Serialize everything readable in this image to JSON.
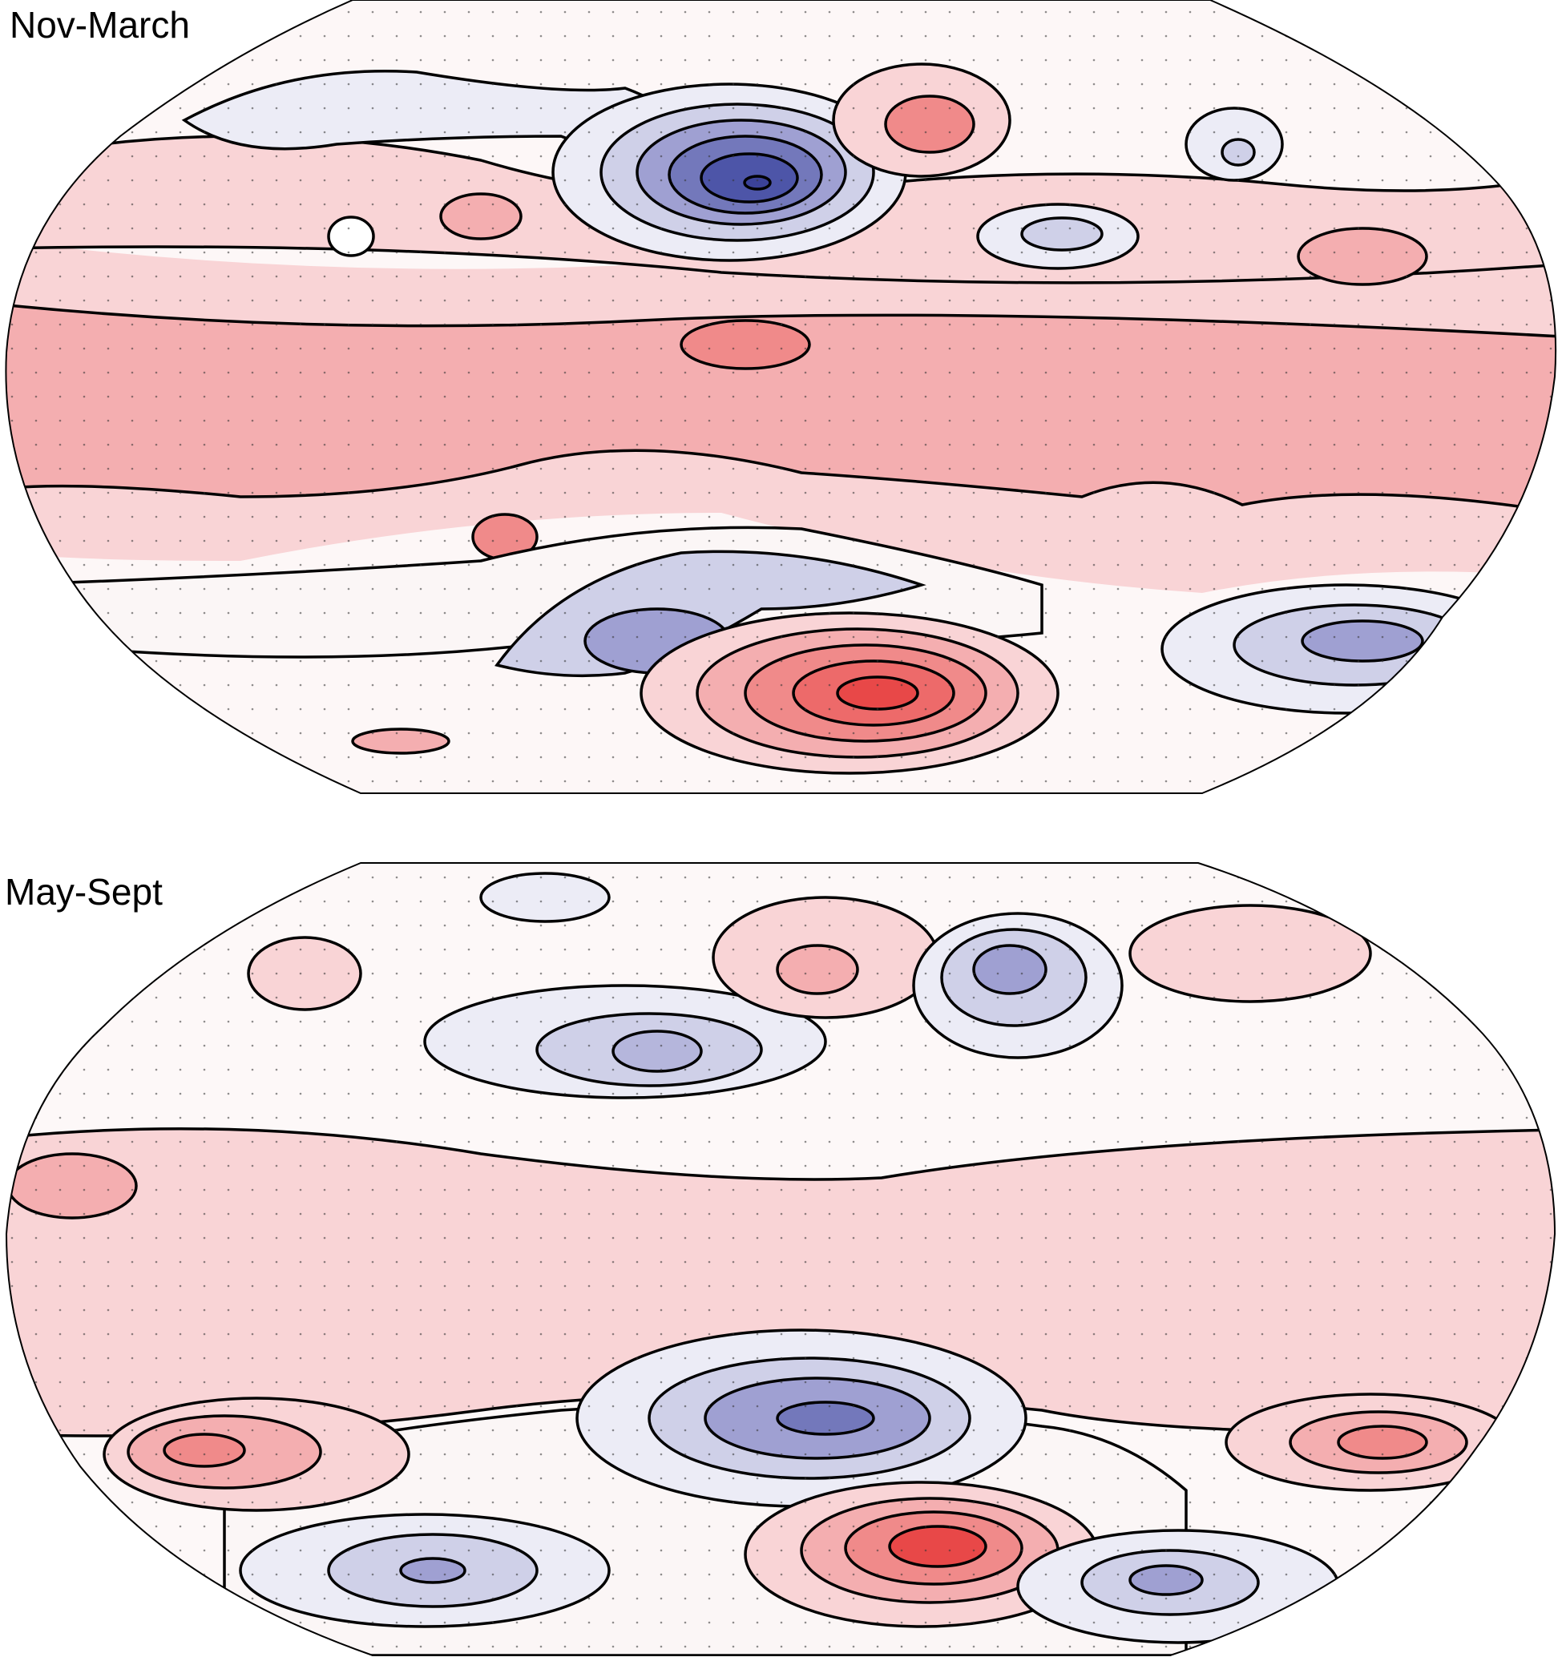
{
  "panels": [
    {
      "label": "Nov-March",
      "projection": "robinson",
      "clip": "upper"
    },
    {
      "label": "May-Sept",
      "projection": "robinson",
      "clip": "lower"
    }
  ],
  "colors": {
    "red_strong": "#e84848",
    "red_mid": "#f08a8a",
    "red_light": "#f4aeb0",
    "red_pale": "#f9d4d6",
    "blue_strong": "#4d55a8",
    "blue_mid": "#9fa0d2",
    "blue_light": "#cfd0e8",
    "blue_pale": "#ececf6",
    "contour": "#000000",
    "coast": "#9a9a9a"
  }
}
